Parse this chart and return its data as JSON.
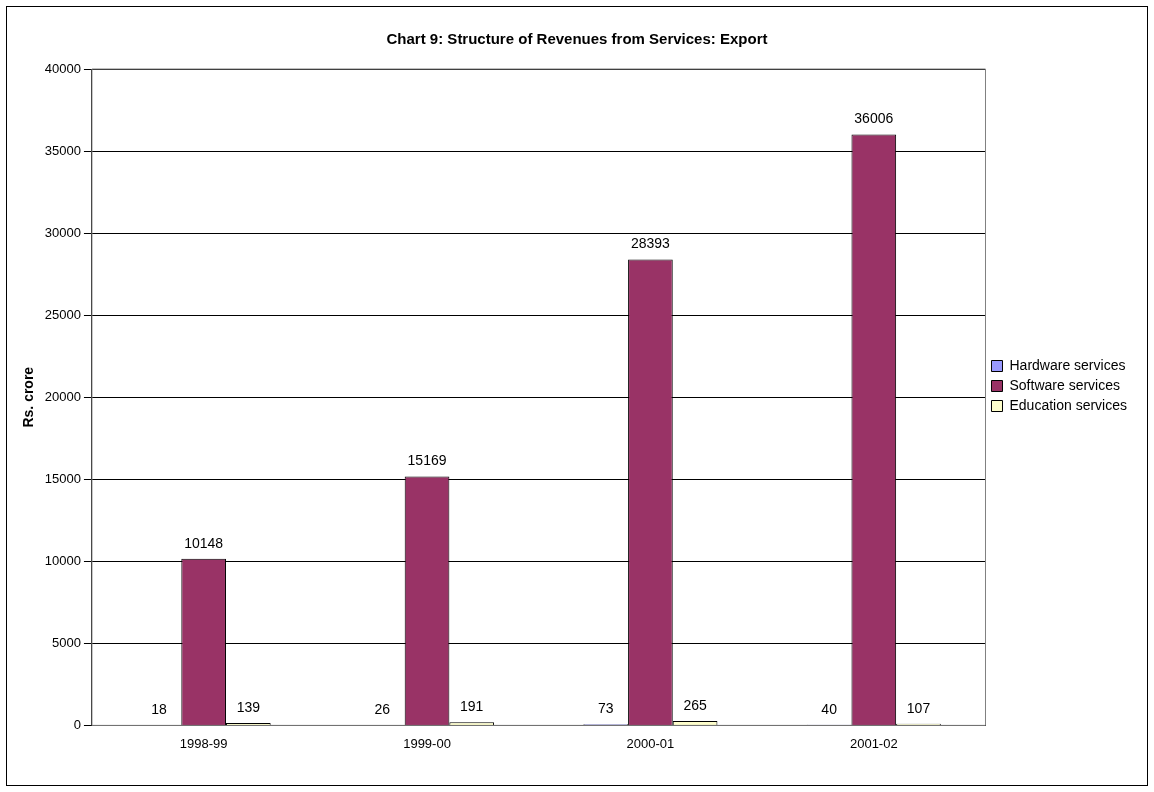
{
  "chart_data": {
    "type": "bar",
    "title": "Chart 9: Structure of Revenues from Services: Export",
    "ylabel": "Rs. crore",
    "categories": [
      "1998-99",
      "1999-00",
      "2000-01",
      "2001-02"
    ],
    "series": [
      {
        "name": "Hardware services",
        "color": "#9999ff",
        "values": [
          18,
          26,
          73,
          40
        ]
      },
      {
        "name": "Software services",
        "color": "#993366",
        "values": [
          10148,
          15169,
          28393,
          36006
        ]
      },
      {
        "name": "Education services",
        "color": "#ffffcc",
        "values": [
          139,
          191,
          265,
          107
        ]
      }
    ],
    "ylim": [
      0,
      40000
    ],
    "yticks": [
      0,
      5000,
      10000,
      15000,
      20000,
      25000,
      30000,
      35000,
      40000
    ],
    "grid": "y",
    "legend": "right",
    "data_labels": true
  }
}
